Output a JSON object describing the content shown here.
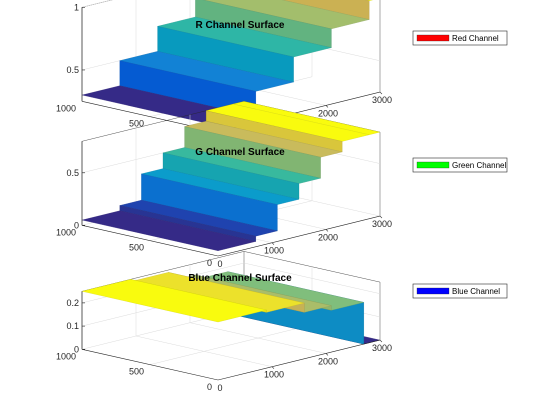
{
  "chart_data": [
    {
      "type": "surface",
      "title": "R Channel Surface",
      "legend": "Red Channel",
      "legend_color": "#ff0000",
      "x_ticks": [
        "1000",
        "2000",
        "3000"
      ],
      "y_ticks": [
        "1000",
        "500",
        "0"
      ],
      "z_ticks": [
        "0.5",
        "1"
      ],
      "zlim": [
        0.25,
        1.0
      ],
      "x_range": [
        0,
        3000
      ],
      "y_range": [
        0,
        1000
      ],
      "steps": [
        {
          "x_start": 0,
          "x_end": 700,
          "z": 0.3
        },
        {
          "x_start": 700,
          "x_end": 1400,
          "z": 0.5
        },
        {
          "x_start": 1400,
          "x_end": 2100,
          "z": 0.7
        },
        {
          "x_start": 2100,
          "x_end": 2800,
          "z": 0.85
        },
        {
          "x_start": 2800,
          "x_end": 3000,
          "z": 1.0
        }
      ]
    },
    {
      "type": "surface",
      "title": "G Channel Surface",
      "legend": "Green Channel",
      "legend_color": "#00ff00",
      "x_ticks": [
        "1000",
        "2000",
        "3000"
      ],
      "y_ticks": [
        "1000",
        "500",
        "0"
      ],
      "z_ticks": [
        "0",
        "0.5"
      ],
      "zlim": [
        0,
        0.8
      ],
      "x_range": [
        0,
        3000
      ],
      "y_range": [
        0,
        1000
      ],
      "steps": [
        {
          "x_start": 0,
          "x_end": 700,
          "z": 0.05
        },
        {
          "x_start": 700,
          "x_end": 1100,
          "z": 0.1
        },
        {
          "x_start": 1100,
          "x_end": 1500,
          "z": 0.35
        },
        {
          "x_start": 1500,
          "x_end": 1900,
          "z": 0.5
        },
        {
          "x_start": 1900,
          "x_end": 2300,
          "z": 0.7
        },
        {
          "x_start": 2300,
          "x_end": 2800,
          "z": 0.8
        },
        {
          "x_start": 2800,
          "x_end": 3000,
          "z": 0.8
        }
      ]
    },
    {
      "type": "surface",
      "title": "Blue Channel Surface",
      "legend": "Blue Channel",
      "legend_color": "#0000ff",
      "x_ticks": [
        "1000",
        "2000",
        "3000"
      ],
      "y_ticks": [
        "1000",
        "500",
        "0"
      ],
      "z_ticks": [
        "0",
        "0.1",
        "0.2"
      ],
      "zlim": [
        0,
        0.25
      ],
      "x_range": [
        0,
        3000
      ],
      "y_range": [
        0,
        1000
      ],
      "steps": [
        {
          "x_start": 0,
          "x_end": 900,
          "z": 0.25
        },
        {
          "x_start": 900,
          "x_end": 1600,
          "z": 0.24
        },
        {
          "x_start": 1600,
          "x_end": 2100,
          "z": 0.2
        },
        {
          "x_start": 2100,
          "x_end": 2700,
          "z": 0.18
        },
        {
          "x_start": 2700,
          "x_end": 3000,
          "z": 0.0
        }
      ]
    }
  ]
}
